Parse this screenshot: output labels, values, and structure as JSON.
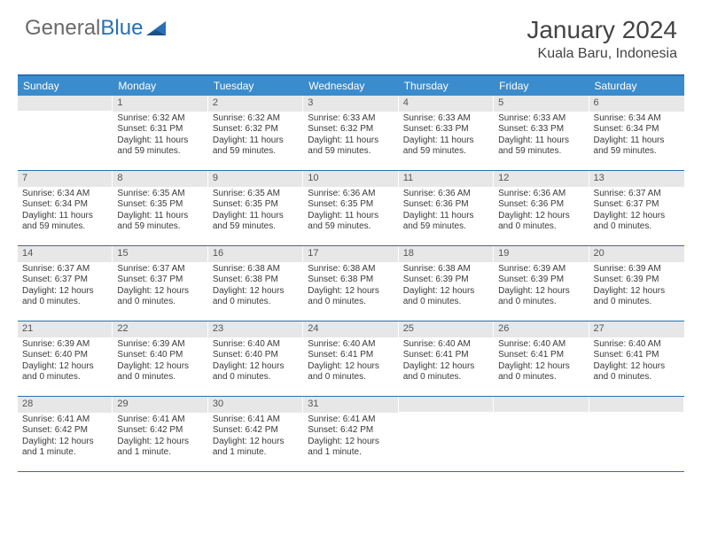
{
  "logo": {
    "word1": "General",
    "word2": "Blue"
  },
  "title": "January 2024",
  "location": "Kuala Baru, Indonesia",
  "colors": {
    "header_bar": "#3b8ccc",
    "rule": "#2a6fb5",
    "daynum_bg": "#e7e7e7",
    "text": "#3a3a3a",
    "logo_gray": "#6a6a6a",
    "logo_blue": "#2a6fb5"
  },
  "weekdays": [
    "Sunday",
    "Monday",
    "Tuesday",
    "Wednesday",
    "Thursday",
    "Friday",
    "Saturday"
  ],
  "weeks": [
    [
      null,
      {
        "n": "1",
        "sunrise": "Sunrise: 6:32 AM",
        "sunset": "Sunset: 6:31 PM",
        "day": "Daylight: 11 hours and 59 minutes."
      },
      {
        "n": "2",
        "sunrise": "Sunrise: 6:32 AM",
        "sunset": "Sunset: 6:32 PM",
        "day": "Daylight: 11 hours and 59 minutes."
      },
      {
        "n": "3",
        "sunrise": "Sunrise: 6:33 AM",
        "sunset": "Sunset: 6:32 PM",
        "day": "Daylight: 11 hours and 59 minutes."
      },
      {
        "n": "4",
        "sunrise": "Sunrise: 6:33 AM",
        "sunset": "Sunset: 6:33 PM",
        "day": "Daylight: 11 hours and 59 minutes."
      },
      {
        "n": "5",
        "sunrise": "Sunrise: 6:33 AM",
        "sunset": "Sunset: 6:33 PM",
        "day": "Daylight: 11 hours and 59 minutes."
      },
      {
        "n": "6",
        "sunrise": "Sunrise: 6:34 AM",
        "sunset": "Sunset: 6:34 PM",
        "day": "Daylight: 11 hours and 59 minutes."
      }
    ],
    [
      {
        "n": "7",
        "sunrise": "Sunrise: 6:34 AM",
        "sunset": "Sunset: 6:34 PM",
        "day": "Daylight: 11 hours and 59 minutes."
      },
      {
        "n": "8",
        "sunrise": "Sunrise: 6:35 AM",
        "sunset": "Sunset: 6:35 PM",
        "day": "Daylight: 11 hours and 59 minutes."
      },
      {
        "n": "9",
        "sunrise": "Sunrise: 6:35 AM",
        "sunset": "Sunset: 6:35 PM",
        "day": "Daylight: 11 hours and 59 minutes."
      },
      {
        "n": "10",
        "sunrise": "Sunrise: 6:36 AM",
        "sunset": "Sunset: 6:35 PM",
        "day": "Daylight: 11 hours and 59 minutes."
      },
      {
        "n": "11",
        "sunrise": "Sunrise: 6:36 AM",
        "sunset": "Sunset: 6:36 PM",
        "day": "Daylight: 11 hours and 59 minutes."
      },
      {
        "n": "12",
        "sunrise": "Sunrise: 6:36 AM",
        "sunset": "Sunset: 6:36 PM",
        "day": "Daylight: 12 hours and 0 minutes."
      },
      {
        "n": "13",
        "sunrise": "Sunrise: 6:37 AM",
        "sunset": "Sunset: 6:37 PM",
        "day": "Daylight: 12 hours and 0 minutes."
      }
    ],
    [
      {
        "n": "14",
        "sunrise": "Sunrise: 6:37 AM",
        "sunset": "Sunset: 6:37 PM",
        "day": "Daylight: 12 hours and 0 minutes."
      },
      {
        "n": "15",
        "sunrise": "Sunrise: 6:37 AM",
        "sunset": "Sunset: 6:37 PM",
        "day": "Daylight: 12 hours and 0 minutes."
      },
      {
        "n": "16",
        "sunrise": "Sunrise: 6:38 AM",
        "sunset": "Sunset: 6:38 PM",
        "day": "Daylight: 12 hours and 0 minutes."
      },
      {
        "n": "17",
        "sunrise": "Sunrise: 6:38 AM",
        "sunset": "Sunset: 6:38 PM",
        "day": "Daylight: 12 hours and 0 minutes."
      },
      {
        "n": "18",
        "sunrise": "Sunrise: 6:38 AM",
        "sunset": "Sunset: 6:39 PM",
        "day": "Daylight: 12 hours and 0 minutes."
      },
      {
        "n": "19",
        "sunrise": "Sunrise: 6:39 AM",
        "sunset": "Sunset: 6:39 PM",
        "day": "Daylight: 12 hours and 0 minutes."
      },
      {
        "n": "20",
        "sunrise": "Sunrise: 6:39 AM",
        "sunset": "Sunset: 6:39 PM",
        "day": "Daylight: 12 hours and 0 minutes."
      }
    ],
    [
      {
        "n": "21",
        "sunrise": "Sunrise: 6:39 AM",
        "sunset": "Sunset: 6:40 PM",
        "day": "Daylight: 12 hours and 0 minutes."
      },
      {
        "n": "22",
        "sunrise": "Sunrise: 6:39 AM",
        "sunset": "Sunset: 6:40 PM",
        "day": "Daylight: 12 hours and 0 minutes."
      },
      {
        "n": "23",
        "sunrise": "Sunrise: 6:40 AM",
        "sunset": "Sunset: 6:40 PM",
        "day": "Daylight: 12 hours and 0 minutes."
      },
      {
        "n": "24",
        "sunrise": "Sunrise: 6:40 AM",
        "sunset": "Sunset: 6:41 PM",
        "day": "Daylight: 12 hours and 0 minutes."
      },
      {
        "n": "25",
        "sunrise": "Sunrise: 6:40 AM",
        "sunset": "Sunset: 6:41 PM",
        "day": "Daylight: 12 hours and 0 minutes."
      },
      {
        "n": "26",
        "sunrise": "Sunrise: 6:40 AM",
        "sunset": "Sunset: 6:41 PM",
        "day": "Daylight: 12 hours and 0 minutes."
      },
      {
        "n": "27",
        "sunrise": "Sunrise: 6:40 AM",
        "sunset": "Sunset: 6:41 PM",
        "day": "Daylight: 12 hours and 0 minutes."
      }
    ],
    [
      {
        "n": "28",
        "sunrise": "Sunrise: 6:41 AM",
        "sunset": "Sunset: 6:42 PM",
        "day": "Daylight: 12 hours and 1 minute."
      },
      {
        "n": "29",
        "sunrise": "Sunrise: 6:41 AM",
        "sunset": "Sunset: 6:42 PM",
        "day": "Daylight: 12 hours and 1 minute."
      },
      {
        "n": "30",
        "sunrise": "Sunrise: 6:41 AM",
        "sunset": "Sunset: 6:42 PM",
        "day": "Daylight: 12 hours and 1 minute."
      },
      {
        "n": "31",
        "sunrise": "Sunrise: 6:41 AM",
        "sunset": "Sunset: 6:42 PM",
        "day": "Daylight: 12 hours and 1 minute."
      },
      null,
      null,
      null
    ]
  ]
}
